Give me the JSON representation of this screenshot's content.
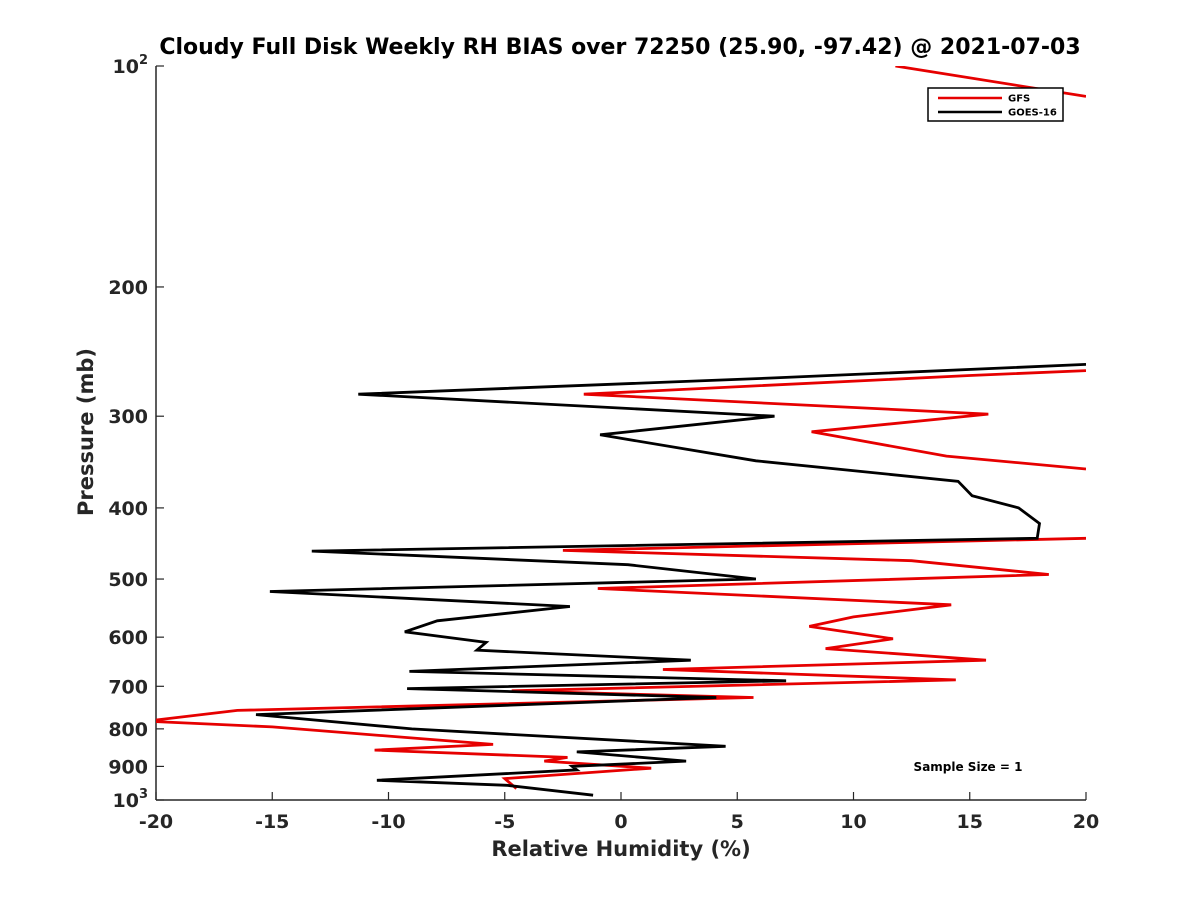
{
  "chart_data": {
    "type": "line",
    "title": "Cloudy Full Disk Weekly RH BIAS over 72250 (25.90, -97.42) @ 2021-07-03",
    "xlabel": "Relative Humidity (%)",
    "ylabel": "Pressure (mb)",
    "xlim": [
      -20,
      20
    ],
    "ylim": [
      100,
      1000
    ],
    "y_scale": "log",
    "y_reversed": true,
    "grid": false,
    "legend_position": "top-right",
    "x_ticks": [
      "-20",
      "-15",
      "-10",
      "-5",
      "0",
      "5",
      "10",
      "15",
      "20"
    ],
    "y_ticks": [
      {
        "base": "10",
        "exp": "2"
      },
      {
        "base": "200",
        "exp": ""
      },
      {
        "base": "300",
        "exp": ""
      },
      {
        "base": "400",
        "exp": ""
      },
      {
        "base": "500",
        "exp": ""
      },
      {
        "base": "600",
        "exp": ""
      },
      {
        "base": "700",
        "exp": ""
      },
      {
        "base": "800",
        "exp": ""
      },
      {
        "base": "900",
        "exp": ""
      },
      {
        "base": "10",
        "exp": "3"
      }
    ],
    "annotation": "Sample Size = 1",
    "series": [
      {
        "name": "GFS",
        "color": "#e60000",
        "points": [
          [
            11.8,
            100
          ],
          [
            20.0,
            110
          ],
          null,
          [
            20.0,
            260
          ],
          [
            15.0,
            264
          ],
          [
            -1.6,
            280
          ],
          [
            15.8,
            298
          ],
          [
            8.2,
            315
          ],
          [
            14.0,
            340
          ],
          [
            20.0,
            354
          ],
          null,
          [
            20.0,
            440
          ],
          [
            -2.5,
            457
          ],
          [
            12.5,
            472
          ],
          [
            18.4,
            493
          ],
          [
            -1.0,
            515
          ],
          [
            14.2,
            542
          ],
          [
            10.0,
            563
          ],
          [
            8.1,
            580
          ],
          [
            11.7,
            603
          ],
          [
            8.8,
            622
          ],
          [
            15.7,
            645
          ],
          [
            1.8,
            664
          ],
          [
            14.4,
            686
          ],
          [
            -4.7,
            710
          ],
          [
            5.7,
            725
          ],
          [
            -16.5,
            755
          ],
          [
            -20.0,
            778
          ],
          null,
          [
            -20.0,
            782
          ],
          [
            -15.0,
            795
          ],
          [
            -5.5,
            840
          ],
          [
            -10.6,
            855
          ],
          [
            -2.3,
            875
          ],
          [
            -3.3,
            885
          ],
          [
            1.3,
            905
          ],
          [
            -5.0,
            935
          ],
          [
            -4.5,
            965
          ]
        ]
      },
      {
        "name": "GOES-16",
        "color": "#000000",
        "points": [
          [
            20.0,
            255
          ],
          [
            6.6,
            266
          ],
          [
            -11.3,
            280
          ],
          [
            6.6,
            300
          ],
          [
            -0.9,
            318
          ],
          [
            5.8,
            345
          ],
          [
            14.5,
            368
          ],
          [
            15.1,
            385
          ],
          [
            17.1,
            400
          ],
          [
            18.0,
            420
          ],
          [
            17.9,
            440
          ],
          [
            -13.3,
            458
          ],
          [
            0.3,
            478
          ],
          [
            5.8,
            500
          ],
          [
            -15.1,
            520
          ],
          [
            -2.2,
            545
          ],
          [
            -7.9,
            570
          ],
          [
            -9.3,
            590
          ],
          [
            -5.8,
            610
          ],
          [
            -6.2,
            625
          ],
          [
            3.0,
            645
          ],
          [
            -9.1,
            668
          ],
          [
            7.1,
            688
          ],
          [
            -9.2,
            705
          ],
          [
            4.1,
            725
          ],
          [
            -15.7,
            765
          ],
          [
            -9.0,
            800
          ],
          [
            4.5,
            845
          ],
          [
            -1.9,
            860
          ],
          [
            2.8,
            885
          ],
          [
            -2.1,
            900
          ],
          [
            -1.9,
            910
          ],
          [
            -10.5,
            940
          ],
          [
            -4.9,
            955
          ],
          [
            -1.2,
            985
          ]
        ]
      }
    ]
  }
}
